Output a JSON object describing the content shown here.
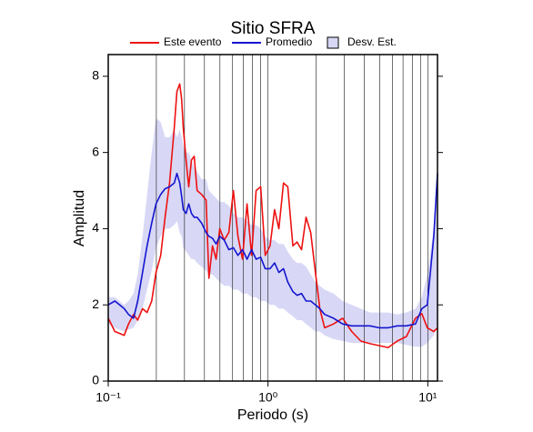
{
  "chart_data": {
    "type": "line",
    "title": "Sitio SFRA",
    "xlabel": "Periodo (s)",
    "ylabel": "Amplitud",
    "xscale": "log",
    "xlim": [
      0.1,
      11.5
    ],
    "ylim": [
      0,
      8.57
    ],
    "xticks": [
      {
        "value": 0.1,
        "label": "10⁻¹"
      },
      {
        "value": 1,
        "label": "10⁰"
      },
      {
        "value": 10,
        "label": "10¹"
      }
    ],
    "yticks": [
      0,
      2,
      4,
      6,
      8
    ],
    "xgrid": [
      0.1,
      0.2,
      0.3,
      0.4,
      0.5,
      0.6,
      0.7,
      0.8,
      0.9,
      1,
      2,
      3,
      4,
      5,
      6,
      7,
      8,
      9,
      10
    ],
    "legend": "top",
    "x": [
      0.1,
      0.11,
      0.126,
      0.134,
      0.144,
      0.153,
      0.164,
      0.175,
      0.187,
      0.199,
      0.213,
      0.227,
      0.242,
      0.259,
      0.269,
      0.28,
      0.288,
      0.295,
      0.307,
      0.319,
      0.332,
      0.345,
      0.36,
      0.384,
      0.41,
      0.427,
      0.449,
      0.473,
      0.499,
      0.532,
      0.569,
      0.607,
      0.648,
      0.692,
      0.739,
      0.789,
      0.843,
      0.9,
      0.961,
      1.03,
      1.1,
      1.17,
      1.25,
      1.33,
      1.43,
      1.52,
      1.62,
      1.73,
      1.85,
      1.98,
      2.11,
      2.26,
      2.57,
      2.93,
      3.34,
      3.81,
      4.35,
      4.96,
      5.65,
      6.44,
      7.35,
      8.37,
      9.18,
      9.93,
      10.9,
      11.5
    ],
    "series": [
      {
        "name": "Este evento",
        "color": "#ee1111",
        "values": [
          1.65,
          1.3,
          1.2,
          1.5,
          1.75,
          1.6,
          1.9,
          1.8,
          2.1,
          2.85,
          3.3,
          4.3,
          5.2,
          6.65,
          7.6,
          7.8,
          7.4,
          6.65,
          5.8,
          5.1,
          5.8,
          5.9,
          5.0,
          4.9,
          4.75,
          2.7,
          3.55,
          3.2,
          4.0,
          3.7,
          3.9,
          5.0,
          3.8,
          3.2,
          4.65,
          3.3,
          5.0,
          5.1,
          3.3,
          3.55,
          4.5,
          4.0,
          5.2,
          5.1,
          3.55,
          3.65,
          3.45,
          4.3,
          3.9,
          2.85,
          1.9,
          1.4,
          1.5,
          1.65,
          1.3,
          1.05,
          0.98,
          0.93,
          0.88,
          1.05,
          1.17,
          1.65,
          1.77,
          1.4,
          1.3,
          1.4
        ]
      },
      {
        "name": "Promedio",
        "color": "#1515d0",
        "values": [
          2.0,
          2.1,
          1.9,
          1.75,
          1.65,
          2.1,
          2.85,
          3.55,
          4.15,
          4.65,
          4.9,
          5.05,
          5.1,
          5.2,
          5.45,
          5.2,
          4.85,
          4.5,
          4.4,
          4.65,
          4.4,
          4.3,
          4.3,
          4.15,
          3.9,
          3.8,
          3.75,
          3.6,
          3.8,
          3.7,
          3.45,
          3.5,
          3.3,
          3.45,
          3.2,
          3.45,
          3.2,
          3.25,
          2.95,
          2.95,
          3.1,
          2.85,
          2.95,
          2.6,
          2.35,
          2.25,
          2.3,
          2.1,
          2.1,
          2.0,
          1.9,
          1.75,
          1.65,
          1.5,
          1.45,
          1.45,
          1.45,
          1.4,
          1.4,
          1.45,
          1.45,
          1.5,
          1.9,
          2.0,
          3.8,
          5.45
        ]
      },
      {
        "name": "Desv. Est.",
        "color": "#d8d8f6",
        "lower": [
          1.5,
          1.4,
          1.3,
          1.35,
          1.4,
          1.6,
          1.9,
          2.4,
          2.9,
          3.5,
          3.8,
          4.0,
          4.0,
          4.1,
          4.2,
          3.9,
          3.8,
          3.5,
          3.4,
          3.3,
          3.2,
          3.2,
          3.1,
          3.0,
          2.9,
          2.8,
          2.8,
          2.7,
          2.6,
          2.5,
          2.5,
          2.4,
          2.4,
          2.3,
          2.3,
          2.2,
          2.2,
          2.1,
          2.1,
          2.0,
          2.0,
          1.9,
          1.9,
          1.8,
          1.7,
          1.6,
          1.6,
          1.5,
          1.4,
          1.3,
          1.3,
          1.2,
          1.1,
          1.05,
          1.0,
          1.0,
          1.0,
          1.0,
          1.0,
          1.0,
          0.95,
          0.9,
          0.9,
          1.0,
          1.2,
          1.5
        ],
        "upper": [
          2.2,
          2.2,
          2.0,
          2.1,
          2.3,
          2.8,
          3.8,
          4.9,
          6.0,
          6.9,
          6.8,
          6.4,
          6.4,
          6.6,
          6.4,
          6.6,
          6.4,
          6.2,
          6.0,
          6.0,
          5.8,
          5.6,
          5.5,
          5.3,
          5.3,
          5.0,
          4.9,
          4.8,
          4.7,
          4.7,
          4.6,
          4.4,
          4.3,
          4.3,
          4.2,
          4.1,
          4.1,
          4.0,
          3.8,
          3.7,
          3.7,
          3.6,
          3.6,
          3.4,
          3.2,
          3.1,
          3.1,
          3.0,
          2.8,
          2.6,
          2.5,
          2.4,
          2.3,
          2.1,
          2.0,
          1.9,
          1.8,
          1.8,
          1.8,
          1.75,
          1.8,
          1.9,
          2.2,
          2.8,
          4.0,
          5.0
        ]
      }
    ]
  }
}
